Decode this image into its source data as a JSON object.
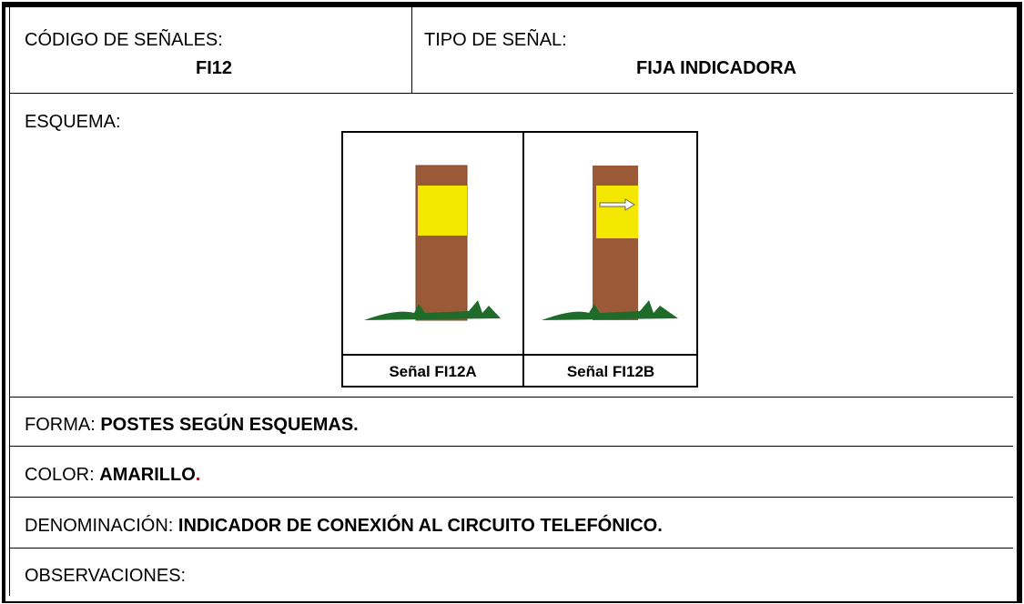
{
  "header": {
    "codigo_label": "CÓDIGO DE SEÑALES:",
    "codigo": "FI12",
    "tipo_label": "TIPO DE SEÑAL:",
    "tipo": "FIJA INDICADORA"
  },
  "esquema": {
    "label": "ESQUEMA:",
    "images": [
      {
        "caption": "Señal FI12A"
      },
      {
        "caption": "Señal FI12B"
      }
    ]
  },
  "forma": {
    "label": "FORMA:",
    "value": "POSTES SEGÚN ESQUEMAS."
  },
  "color": {
    "label": "COLOR:",
    "value": "AMARILLO",
    "suffix": "."
  },
  "denominacion": {
    "label": "DENOMINACIÓN:",
    "value": "INDICADOR DE CONEXIÓN AL CIRCUITO TELEFÓNICO."
  },
  "observaciones": {
    "label": "OBSERVACIONES:"
  }
}
